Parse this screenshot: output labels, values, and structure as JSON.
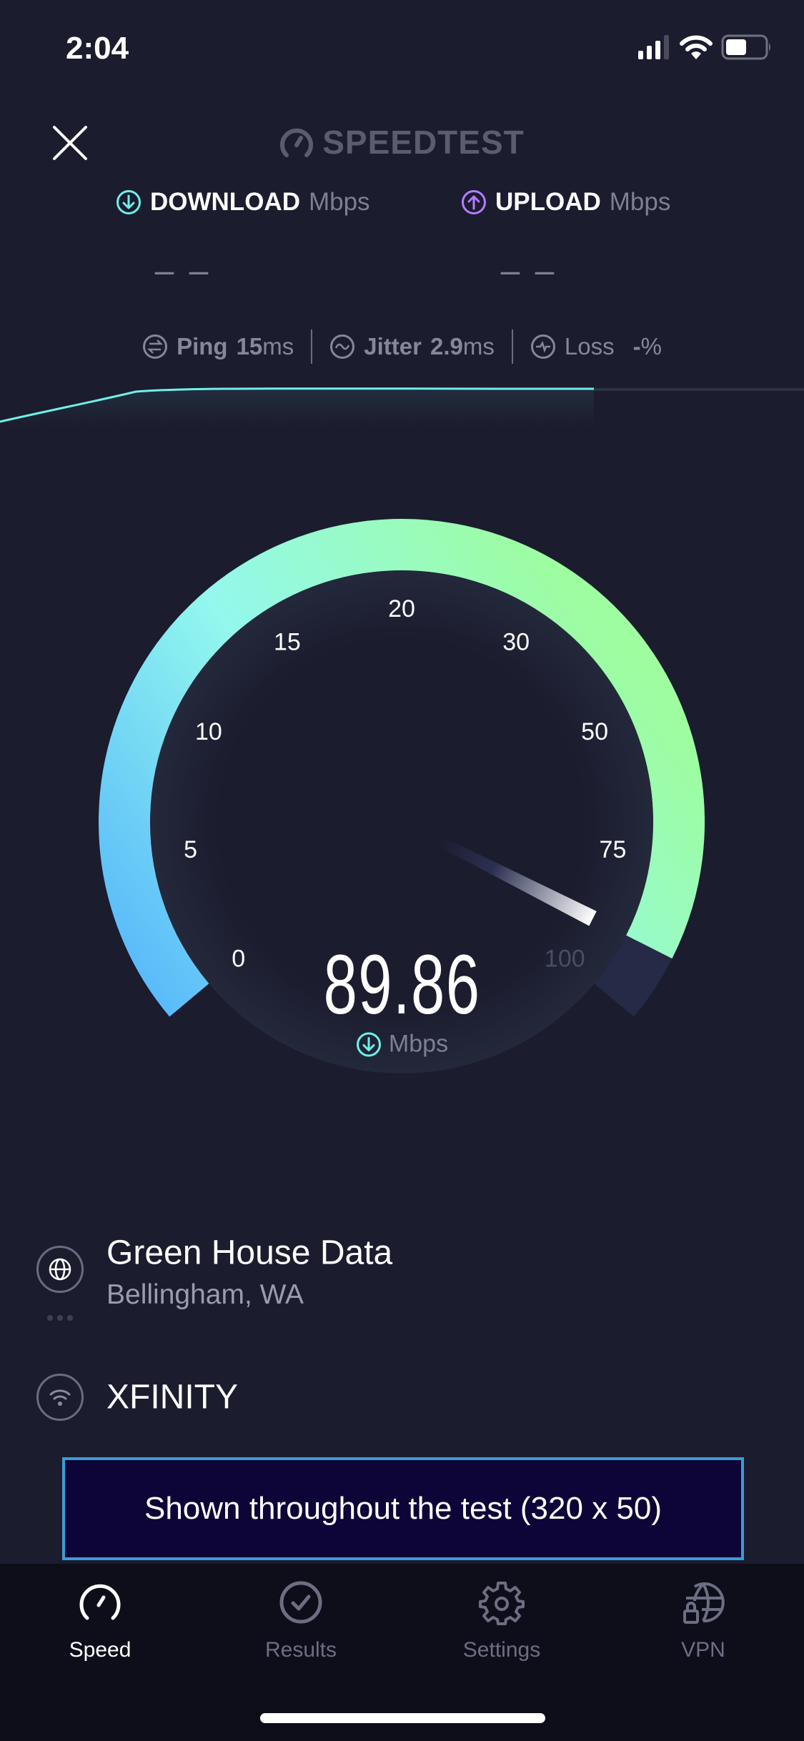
{
  "status_bar": {
    "time": "2:04",
    "icons": [
      "cellular-signal-icon",
      "wifi-icon",
      "battery-icon"
    ]
  },
  "header": {
    "close_icon": "close-icon",
    "logo_text": "SPEEDTEST"
  },
  "download": {
    "label": "DOWNLOAD",
    "unit": "Mbps",
    "value": "– –",
    "color": "#6ff0e8"
  },
  "upload": {
    "label": "UPLOAD",
    "unit": "Mbps",
    "value": "– –",
    "color": "#b67cff"
  },
  "stats": {
    "ping": {
      "label": "Ping",
      "value": "15",
      "unit": "ms"
    },
    "jitter": {
      "label": "Jitter",
      "value": "2.9",
      "unit": "ms"
    },
    "loss": {
      "label": "Loss",
      "value": "-",
      "unit": "%"
    }
  },
  "gauge": {
    "ticks": [
      "0",
      "5",
      "10",
      "15",
      "20",
      "30",
      "50",
      "75",
      "100"
    ],
    "tick_values": [
      0,
      5,
      10,
      15,
      20,
      30,
      50,
      75,
      100
    ],
    "current_value": 89.86,
    "value_text": "89.86",
    "unit": "Mbps",
    "colors": {
      "start": "#55b5fb",
      "mid": "#93f8ee",
      "end": "#9dfd9f",
      "remaining": "#252a46"
    }
  },
  "server": {
    "name": "Green House Data",
    "location": "Bellingham, WA"
  },
  "isp": {
    "name": "XFINITY"
  },
  "ad": {
    "text": "Shown throughout the test (320 x 50)"
  },
  "tabs": [
    {
      "label": "Speed",
      "icon": "speedometer-icon",
      "active": true
    },
    {
      "label": "Results",
      "icon": "check-circle-icon",
      "active": false
    },
    {
      "label": "Settings",
      "icon": "gear-icon",
      "active": false
    },
    {
      "label": "VPN",
      "icon": "globe-lock-icon",
      "active": false
    }
  ]
}
